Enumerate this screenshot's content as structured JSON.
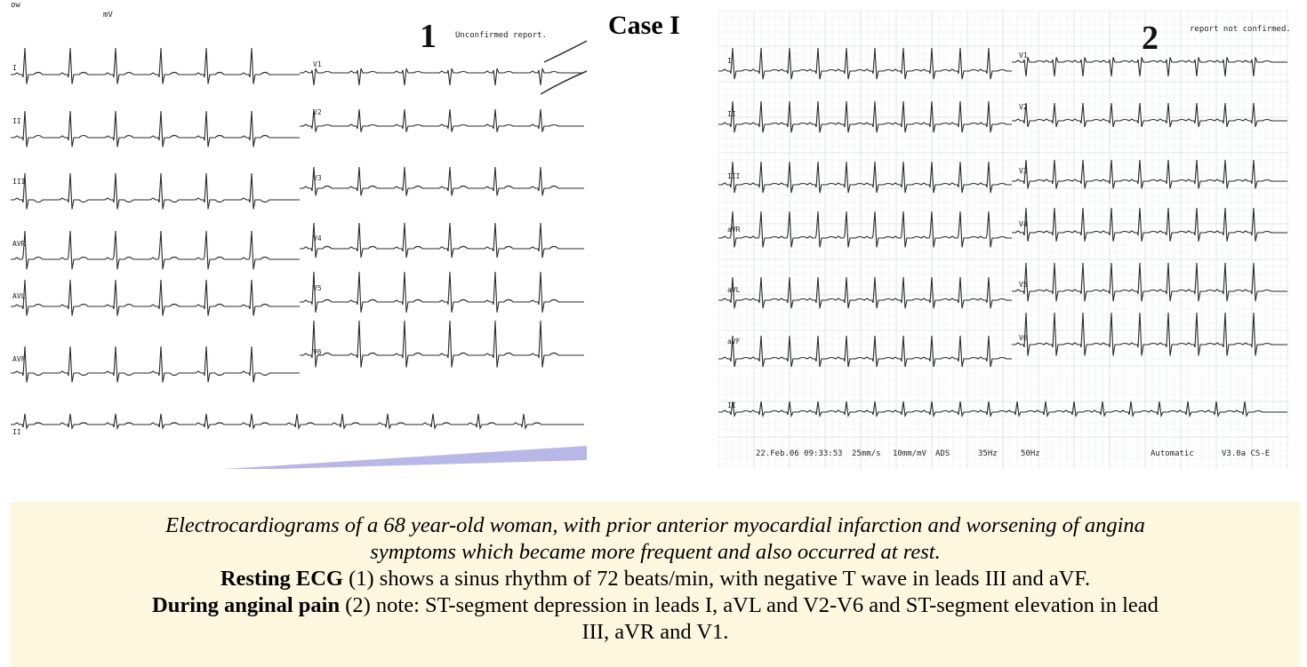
{
  "title": "Case I",
  "panel1": {
    "number": "1",
    "report_note": "Unconfirmed report.",
    "corner_labels": [
      "ow",
      "mV"
    ],
    "limb_leads": [
      "I",
      "II",
      "III",
      "AVR",
      "AVL",
      "AVF",
      "II"
    ],
    "chest_leads": [
      "V1",
      "V2",
      "V3",
      "V4",
      "V5",
      "V6"
    ]
  },
  "panel2": {
    "number": "2",
    "report_note": "report not confirmed.",
    "limb_leads": [
      "I",
      "II",
      "III",
      "aVR",
      "aVL",
      "aVF",
      "II"
    ],
    "chest_leads": [
      "V1",
      "V2",
      "V3",
      "V4",
      "V5",
      "V6"
    ],
    "footer": [
      "22.Feb.06 09:33:53",
      "25mm/s",
      "10mm/mV",
      "ADS",
      "35Hz",
      "50Hz",
      "Automatic",
      "V3.0a CS-E"
    ]
  },
  "caption": {
    "line1": "Electrocardiograms of a 68 year-old woman, with prior anterior myocardial infarction and worsening of angina",
    "line2": "symptoms which became more frequent and also occurred at rest.",
    "resting_bold": "Resting ECG",
    "resting_text": " (1) shows a sinus rhythm of 72 beats/min, with negative T wave in leads III and aVF.",
    "pain_bold": "During anginal pain",
    "pain_text": " (2) note: ST-segment depression in leads I, aVL and V2-V6 and ST-segment elevation in lead",
    "pain_text2": "III, aVR and V1."
  },
  "colors": {
    "caption_bg": "#fdf7e0",
    "grid": "#d9dde8",
    "trace": "#2a2a2a",
    "bottom_strip": "#b8b8e8"
  }
}
